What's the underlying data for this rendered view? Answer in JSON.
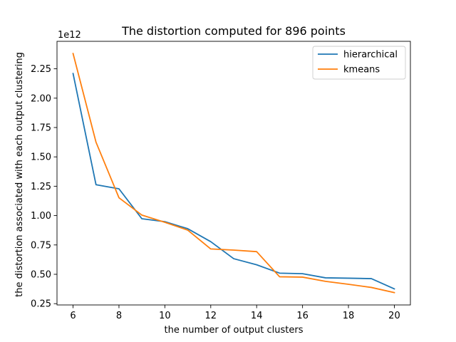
{
  "chart_data": {
    "type": "line",
    "title": "The distortion computed for 896 points",
    "xlabel": "the number of output clusters",
    "ylabel": "the distortion associated with each output clustering",
    "offset_text": "1e12",
    "x": [
      6,
      7,
      8,
      9,
      10,
      11,
      12,
      13,
      14,
      15,
      16,
      17,
      18,
      19,
      20
    ],
    "xlim": [
      5.3,
      20.7
    ],
    "ylim": [
      0.239,
      2.484
    ],
    "xticks": [
      6,
      8,
      10,
      12,
      14,
      16,
      18,
      20
    ],
    "xtick_labels": [
      "6",
      "8",
      "10",
      "12",
      "14",
      "16",
      "18",
      "20"
    ],
    "yticks": [
      0.25,
      0.5,
      0.75,
      1.0,
      1.25,
      1.5,
      1.75,
      2.0,
      2.25
    ],
    "ytick_labels": [
      "0.25",
      "0.50",
      "0.75",
      "1.00",
      "1.25",
      "1.50",
      "1.75",
      "2.00",
      "2.25"
    ],
    "grid": false,
    "legend_position": "top-right",
    "series": [
      {
        "name": "hierarchical",
        "color": "#1f77b4",
        "values": [
          2.21,
          1.263,
          1.228,
          0.973,
          0.948,
          0.888,
          0.778,
          0.633,
          0.581,
          0.51,
          0.505,
          0.47,
          0.467,
          0.463,
          0.376
        ]
      },
      {
        "name": "kmeans",
        "color": "#ff7f0e",
        "values": [
          2.38,
          1.625,
          1.152,
          1.004,
          0.943,
          0.876,
          0.716,
          0.706,
          0.693,
          0.479,
          0.476,
          0.44,
          0.415,
          0.388,
          0.344
        ]
      }
    ]
  }
}
